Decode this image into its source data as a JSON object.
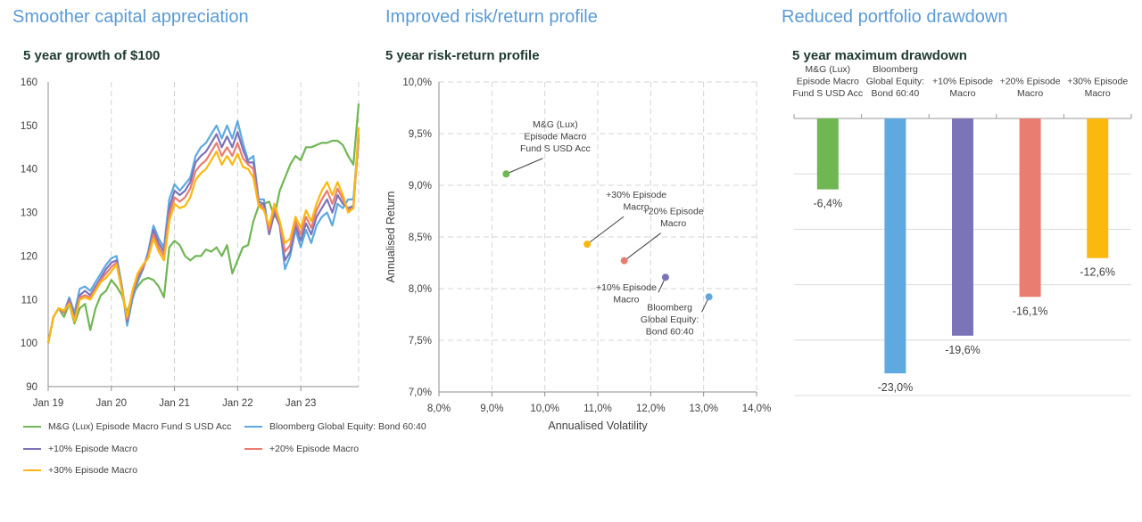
{
  "sections": [
    {
      "title": "Smoother capital appreciation"
    },
    {
      "title": "Improved risk/return profile"
    },
    {
      "title": "Reduced portfolio drawdown"
    }
  ],
  "colors": {
    "fund": "#70b653",
    "bloomberg": "#5ea9e0",
    "plus10": "#7b74b8",
    "plus20": "#ea7d72",
    "plus30": "#fbb80e",
    "section_title": "#5b9bd5",
    "chart_title": "#1f3a2f"
  },
  "chart_data": [
    {
      "type": "line",
      "title": "5 year growth of $100",
      "xlabel": "",
      "ylabel": "",
      "ylim": [
        90,
        160
      ],
      "yticks": [
        90,
        100,
        110,
        120,
        130,
        140,
        150,
        160
      ],
      "xtick_labels": [
        "Jan 19",
        "Jan 20",
        "Jan 21",
        "Jan 22",
        "Jan 23"
      ],
      "xtick_positions": [
        0,
        12,
        24,
        36,
        48
      ],
      "x_count": 60,
      "grid": "vertical dashed",
      "legend_position": "bottom",
      "series": [
        {
          "name": "M&G (Lux) Episode Macro Fund S USD Acc",
          "color_key": "fund",
          "values": [
            100,
            106,
            108,
            106,
            109,
            104.5,
            108,
            109,
            103,
            108,
            111,
            112,
            114.5,
            113,
            111,
            107,
            111,
            113,
            114.5,
            115,
            114.5,
            113,
            110.5,
            122,
            123.5,
            122.5,
            120,
            119,
            120,
            120,
            121.5,
            121,
            122,
            120,
            122.5,
            116,
            119,
            122,
            122.5,
            128,
            131.5,
            132,
            132.5,
            129,
            135,
            138,
            141,
            143,
            142,
            145,
            145,
            145.5,
            146,
            146,
            146.5,
            146.5,
            145.5,
            143,
            141,
            155
          ]
        },
        {
          "name": "Bloomberg Global Equity: Bond 60:40",
          "color_key": "bloomberg",
          "values": [
            100,
            106,
            108,
            107,
            110.5,
            107,
            112.5,
            113,
            112,
            114,
            116,
            118,
            119.5,
            120,
            113,
            104,
            110,
            114,
            117,
            121,
            127,
            124,
            122,
            133,
            136.5,
            135,
            136.5,
            138,
            143,
            145,
            146,
            148,
            150,
            147,
            150,
            147,
            151,
            146,
            142,
            143,
            133,
            133,
            125,
            130,
            127,
            117,
            120,
            126,
            122,
            126,
            123,
            127,
            129,
            130,
            127,
            132,
            131,
            133,
            133,
            148
          ]
        },
        {
          "name": "+10% Episode Macro",
          "color_key": "plus10",
          "values": [
            100,
            106,
            108,
            107,
            110,
            106,
            111,
            112,
            111,
            113,
            115,
            117,
            118.5,
            119,
            113,
            105,
            111,
            115,
            117,
            120.5,
            126,
            123,
            121,
            131,
            135,
            134,
            135,
            137,
            141.5,
            143,
            144,
            146,
            148,
            145,
            147.5,
            145,
            148.5,
            144.5,
            141.5,
            141.5,
            132.5,
            132,
            125,
            130,
            127,
            119,
            121,
            127,
            123.5,
            127.5,
            125,
            129,
            131,
            133,
            130,
            134,
            132,
            131,
            131.5,
            147
          ]
        },
        {
          "name": "+20% Episode Macro",
          "color_key": "plus20",
          "values": [
            100,
            106,
            108,
            107,
            109.5,
            105.5,
            110.5,
            111,
            110.5,
            112.5,
            114.5,
            116,
            117.5,
            118.5,
            112.5,
            105.5,
            111.5,
            115.5,
            117.5,
            120,
            125,
            122,
            120,
            129.5,
            133.5,
            132.5,
            133.5,
            135.5,
            139.5,
            141,
            142,
            144,
            146,
            143,
            145,
            143,
            146,
            142.5,
            141,
            140,
            132,
            131,
            126,
            131,
            127.5,
            121,
            122.5,
            128,
            125,
            129,
            126.5,
            130.5,
            133,
            135,
            132,
            135.5,
            133,
            130.5,
            131,
            148
          ]
        },
        {
          "name": "+30% Episode Macro",
          "color_key": "plus30",
          "values": [
            100,
            106,
            108,
            107.5,
            109,
            105,
            110,
            110.5,
            110,
            112,
            114,
            115,
            116.5,
            118,
            112,
            106,
            112,
            116,
            118,
            119.5,
            124,
            121,
            119,
            128,
            132,
            131,
            131.5,
            133.5,
            137.5,
            139,
            140,
            142,
            144,
            141,
            143,
            141,
            143.5,
            140.5,
            140,
            138,
            131.5,
            130.5,
            127,
            132,
            128,
            123,
            124,
            129,
            126.5,
            130.5,
            128,
            132,
            135,
            137,
            134,
            137,
            134,
            130,
            131,
            149.5
          ]
        }
      ]
    },
    {
      "type": "scatter",
      "title": "5 year risk-return profile",
      "xlabel": "Annualised Volatility",
      "ylabel": "Annualised Return",
      "xlim": [
        8.0,
        14.0
      ],
      "ylim": [
        7.0,
        10.0
      ],
      "xticks": [
        "8,0%",
        "9,0%",
        "10,0%",
        "11,0%",
        "12,0%",
        "13,0%",
        "14,0%"
      ],
      "yticks": [
        "7,0%",
        "7,5%",
        "8,0%",
        "8,5%",
        "9,0%",
        "9,5%",
        "10,0%"
      ],
      "grid": "dashed both",
      "points": [
        {
          "label_lines": [
            "M&G (Lux)",
            "Episode Macro",
            "Fund S USD Acc"
          ],
          "x": 9.27,
          "y": 9.11,
          "color_key": "fund",
          "anchor": "upper-right"
        },
        {
          "label_lines": [
            "+30% Episode",
            "Macro"
          ],
          "x": 10.8,
          "y": 8.43,
          "color_key": "plus30",
          "anchor": "upper-right"
        },
        {
          "label_lines": [
            "+20% Episode",
            "Macro"
          ],
          "x": 11.5,
          "y": 8.27,
          "color_key": "plus20",
          "anchor": "upper-right"
        },
        {
          "label_lines": [
            "+10% Episode",
            "Macro"
          ],
          "x": 12.28,
          "y": 8.11,
          "color_key": "plus10",
          "anchor": "lower-left"
        },
        {
          "label_lines": [
            "Bloomberg",
            "Global Equity:",
            "Bond 60:40"
          ],
          "x": 13.1,
          "y": 7.92,
          "color_key": "bloomberg",
          "anchor": "lower-left"
        }
      ]
    },
    {
      "type": "bar",
      "title": "5 year maximum drawdown",
      "ylim": [
        -25,
        0
      ],
      "grid": "horizontal",
      "categories": [
        [
          "M&G (Lux)",
          "Episode Macro",
          "Fund S USD Acc"
        ],
        [
          "Bloomberg",
          "Global Equity:",
          "Bond 60:40"
        ],
        [
          "+10% Episode",
          "Macro"
        ],
        [
          "+20% Episode",
          "Macro"
        ],
        [
          "+30% Episode",
          "Macro"
        ]
      ],
      "values": [
        -6.4,
        -23.0,
        -19.6,
        -16.1,
        -12.6
      ],
      "value_labels": [
        "-6,4%",
        "-23,0%",
        "-19,6%",
        "-16,1%",
        "-12,6%"
      ],
      "color_keys": [
        "fund",
        "bloomberg",
        "plus10",
        "plus20",
        "plus30"
      ]
    }
  ]
}
